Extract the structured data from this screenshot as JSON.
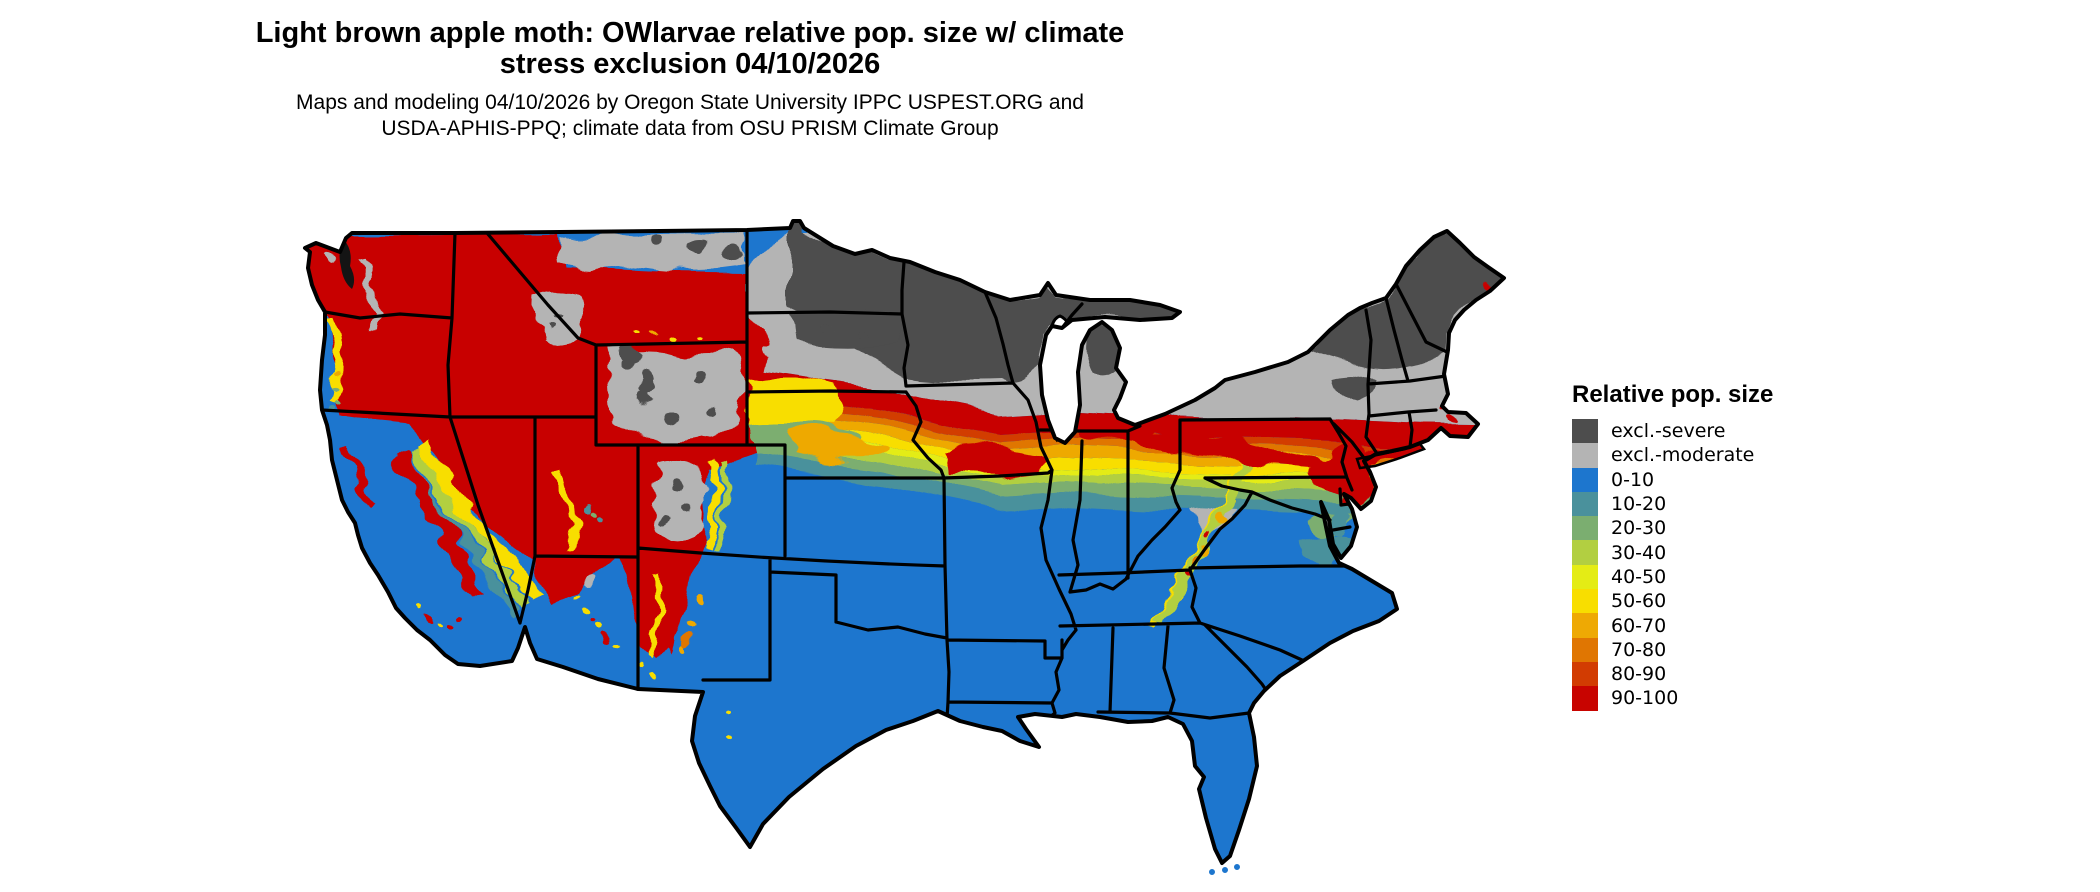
{
  "title": {
    "line1": "Light brown apple moth: OWlarvae relative pop. size w/ climate",
    "line2": "stress exclusion 04/10/2026"
  },
  "subtitle": {
    "line1": "Maps and modeling 04/10/2026 by Oregon State University IPPC USPEST.ORG and",
    "line2": "USDA-APHIS-PPQ; climate data from OSU PRISM Climate Group"
  },
  "legend": {
    "title": "Relative pop. size",
    "items": [
      {
        "label": "excl.-severe",
        "color": "#4D4D4D"
      },
      {
        "label": "excl.-moderate",
        "color": "#B4B4B4"
      },
      {
        "label": "0-10",
        "color": "#1D76CE"
      },
      {
        "label": "10-20",
        "color": "#4A919C"
      },
      {
        "label": "20-30",
        "color": "#7BAE70"
      },
      {
        "label": "30-40",
        "color": "#B2CF41"
      },
      {
        "label": "40-50",
        "color": "#E4EC15"
      },
      {
        "label": "50-60",
        "color": "#F8DE00"
      },
      {
        "label": "60-70",
        "color": "#EEA904"
      },
      {
        "label": "70-80",
        "color": "#E07602"
      },
      {
        "label": "80-90",
        "color": "#D23C02"
      },
      {
        "label": "90-100",
        "color": "#C80400"
      }
    ]
  },
  "map": {
    "water": "#FFFFFF",
    "border": "#000000",
    "sound": "#141414"
  },
  "chart_data": {
    "type": "choropleth_map",
    "title": "Light brown apple moth: OWlarvae relative pop. size w/ climate stress exclusion 04/10/2026",
    "legend_title": "Relative pop. size",
    "geography": "Continental United States with state boundaries",
    "categories": [
      "excl.-severe",
      "excl.-moderate",
      "0-10",
      "10-20",
      "20-30",
      "30-40",
      "40-50",
      "50-60",
      "60-70",
      "70-80",
      "80-90",
      "90-100"
    ],
    "colors": [
      "#4D4D4D",
      "#B4B4B4",
      "#1D76CE",
      "#4A919C",
      "#7BAE70",
      "#B2CF41",
      "#E4EC15",
      "#F8DE00",
      "#EEA904",
      "#E07602",
      "#D23C02",
      "#C80400"
    ],
    "pattern_notes": {
      "excl_severe": "northern tier: North Dakota, Minnesota, Wisconsin, upper Michigan, Adirondacks, northern New England and Maine",
      "excl_moderate": "belt south of severe zone: South Dakota, Iowa, southern Great Lakes, Pennsylvania, New York, plus high Rockies (Wyoming, Colorado, central Idaho) and a northern Montana strip",
      "90_100": "Washington, Oregon, Idaho, Montana, northern Nevada/Utah, Sierra Nevada, and a belt from Nebraska through the Ohio Valley to the New Jersey / southern New England coast",
      "transition_bands": "narrow east-west bands 10-20 through 80-90 between the gray exclusion zone and the blue south",
      "0_10": "southern half of the US: California lowlands, Arizona/New Mexico lowlands, Texas, the Southeast and mid/south Atlantic states"
    }
  }
}
